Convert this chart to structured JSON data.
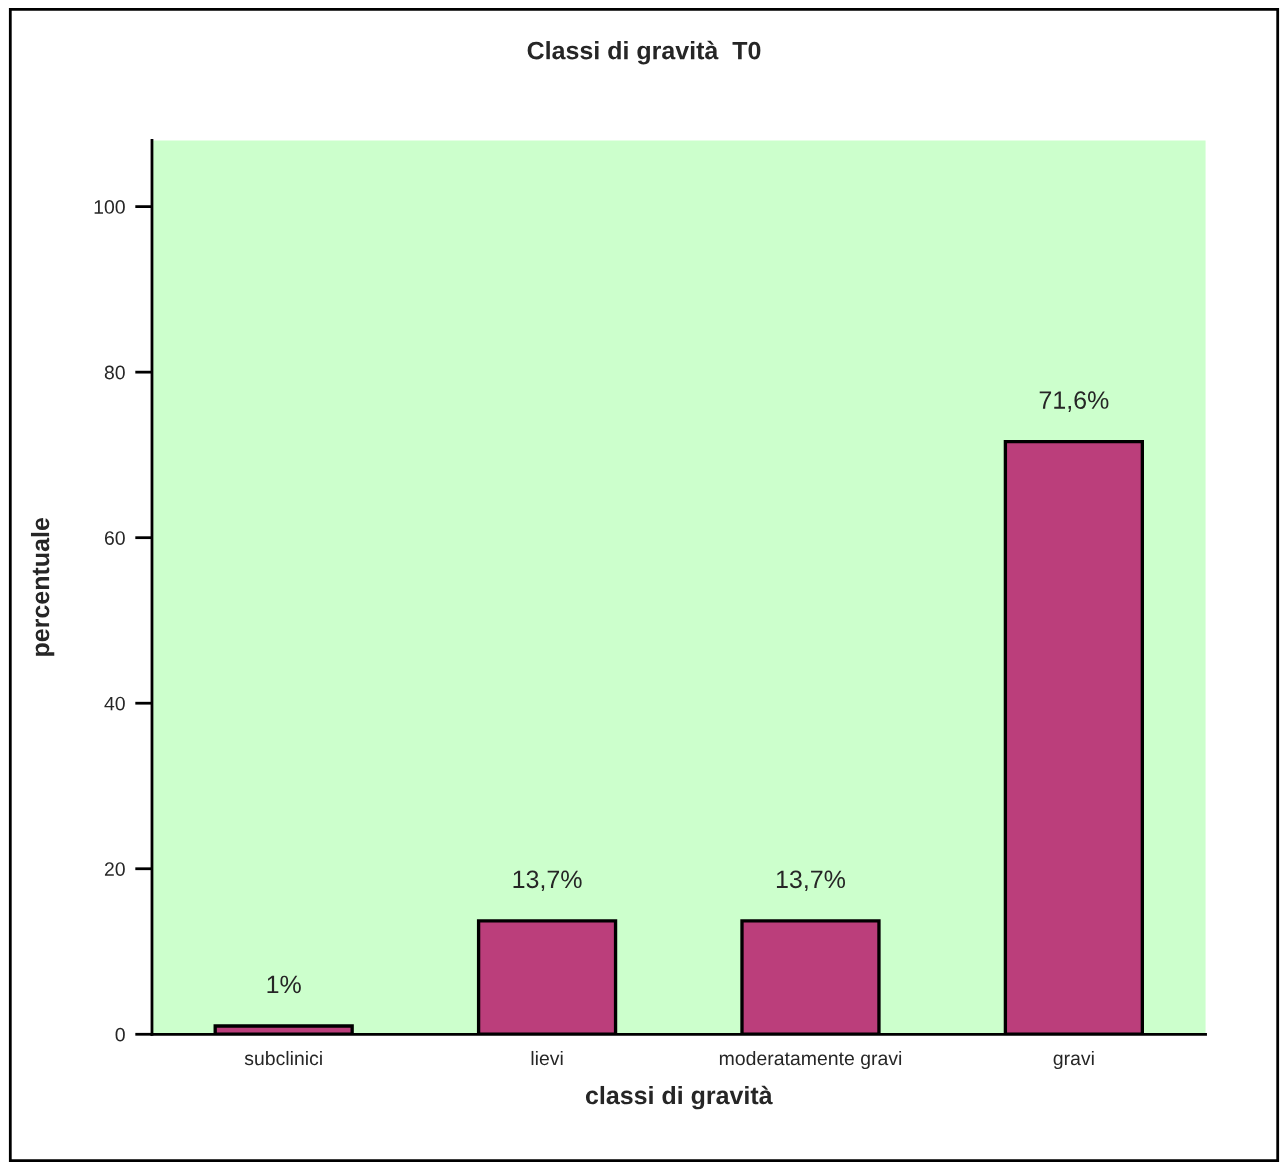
{
  "chart_data": {
    "type": "bar",
    "title": "Classi di gravità  T0",
    "xlabel": "classi di gravità",
    "ylabel": "percentuale",
    "categories": [
      "subclinici",
      "lievi",
      "moderatamente gravi",
      "gravi"
    ],
    "values": [
      1,
      13.7,
      13.7,
      71.6
    ],
    "value_labels": [
      "1%",
      "13,7%",
      "13,7%",
      "71,6%"
    ],
    "color": "#bb3e7b",
    "ylim": [
      0,
      108
    ],
    "yticks": [
      0,
      20,
      40,
      60,
      80,
      100
    ],
    "grid": false,
    "legend": false
  }
}
